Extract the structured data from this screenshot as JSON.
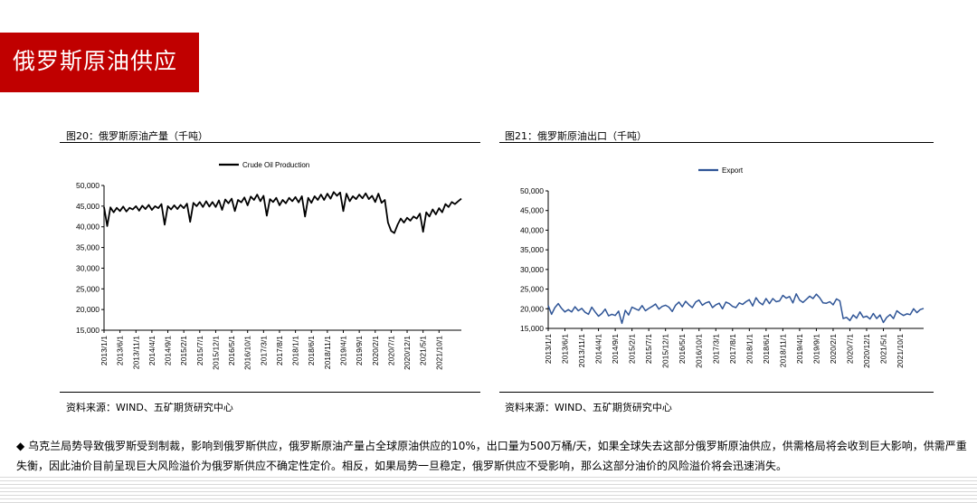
{
  "page_title": "俄罗斯原油供应",
  "footnote": {
    "bullet": "◆",
    "text": "乌克兰局势导致俄罗斯受到制裁，影响到俄罗斯供应，俄罗斯原油产量占全球原油供应的10%，出口量为500万桶/天，如果全球失去这部分俄罗斯原油供应，供需格局将会收到巨大影响，供需严重失衡，因此油价目前呈现巨大风险溢价为俄罗斯供应不确定性定价。相反，如果局势一旦稳定，俄罗斯供应不受影响，那么这部分油价的风险溢价将会迅速消失。"
  },
  "colors": {
    "banner": "#c00000",
    "production_line": "#000000",
    "export_line": "#2e5496"
  },
  "chart_data": [
    {
      "type": "line",
      "figure_title": "图20：俄罗斯原油产量（千吨）",
      "source": "资料来源：WIND、五矿期货研究中心",
      "legend": "top-center",
      "grid": false,
      "ylim": [
        15000,
        50000
      ],
      "yticks": [
        "15,000",
        "20,000",
        "25,000",
        "30,000",
        "35,000",
        "40,000",
        "45,000",
        "50,000"
      ],
      "xticks": [
        "2013/1/1",
        "2013/6/1",
        "2013/11/1",
        "2014/4/1",
        "2014/9/1",
        "2015/2/1",
        "2015/7/1",
        "2015/12/1",
        "2016/5/1",
        "2016/10/1",
        "2017/3/1",
        "2017/8/1",
        "2018/1/1",
        "2018/6/1",
        "2018/11/1",
        "2019/4/1",
        "2019/9/1",
        "2020/2/1",
        "2020/7/1",
        "2020/12/1",
        "2021/5/1",
        "2021/10/1"
      ],
      "series": [
        {
          "name": "Crude Oil Production",
          "start": "2013/1",
          "frequency": "monthly",
          "values": [
            44800,
            40200,
            44700,
            43500,
            44600,
            43800,
            44900,
            43700,
            44600,
            44200,
            45000,
            43900,
            45100,
            44300,
            45300,
            44100,
            45000,
            44500,
            45500,
            40500,
            45000,
            44200,
            45200,
            44300,
            45300,
            44500,
            45600,
            41200,
            45800,
            45000,
            46000,
            44800,
            46200,
            44900,
            46000,
            44800,
            46400,
            44100,
            46600,
            45700,
            46800,
            43800,
            46500,
            45900,
            47100,
            45200,
            47300,
            46500,
            47800,
            46200,
            47500,
            42700,
            46700,
            46000,
            47000,
            45200,
            46500,
            45700,
            47000,
            46200,
            47200,
            45900,
            47400,
            42500,
            47000,
            45800,
            47400,
            46500,
            47800,
            46500,
            48000,
            46800,
            48400,
            47500,
            48300,
            43800,
            48000,
            46200,
            47400,
            46700,
            47800,
            46900,
            48100,
            46700,
            47500,
            46000,
            48000,
            45800,
            46500,
            41000,
            39000,
            38500,
            40500,
            42000,
            41000,
            42200,
            41500,
            42500,
            42000,
            43200,
            38800,
            43500,
            42500,
            44200,
            43000,
            44500,
            43500,
            45500,
            44800,
            46000,
            45500,
            46200,
            46800
          ]
        }
      ]
    },
    {
      "type": "line",
      "figure_title": "图21：俄罗斯原油出口（千吨）",
      "source": "资料来源：WIND、五矿期货研究中心",
      "legend": "top-center",
      "grid": false,
      "ylim": [
        15000,
        50000
      ],
      "yticks": [
        "15,000",
        "20,000",
        "25,000",
        "30,000",
        "35,000",
        "40,000",
        "45,000",
        "50,000"
      ],
      "xticks": [
        "2013/1/1",
        "2013/6/1",
        "2013/11/1",
        "2014/4/1",
        "2014/9/1",
        "2015/2/1",
        "2015/7/1",
        "2015/12/1",
        "2016/5/1",
        "2016/10/1",
        "2017/3/1",
        "2017/8/1",
        "2018/1/1",
        "2018/6/1",
        "2018/11/1",
        "2019/4/1",
        "2019/9/1",
        "2020/2/1",
        "2020/7/1",
        "2020/12/1",
        "2021/5/1",
        "2021/10/1"
      ],
      "series": [
        {
          "name": "Export",
          "start": "2013/1",
          "frequency": "monthly",
          "values": [
            20800,
            18600,
            20300,
            21300,
            20100,
            19200,
            19800,
            19200,
            20500,
            19500,
            20100,
            19100,
            18600,
            20400,
            19200,
            18100,
            18800,
            19900,
            18200,
            18600,
            18300,
            19400,
            16300,
            19600,
            18400,
            20400,
            20000,
            19600,
            20800,
            19500,
            20100,
            20600,
            21200,
            19900,
            20600,
            20900,
            20400,
            19300,
            20900,
            21700,
            20500,
            21900,
            21000,
            20300,
            21700,
            22200,
            20900,
            21500,
            21800,
            20300,
            21000,
            21400,
            20000,
            21700,
            21300,
            20600,
            20300,
            21500,
            21100,
            21800,
            22300,
            20700,
            22800,
            21600,
            21000,
            22600,
            21300,
            22600,
            21800,
            22000,
            23400,
            22700,
            23100,
            21500,
            23800,
            22200,
            21600,
            22400,
            23200,
            22600,
            23700,
            22800,
            21500,
            21400,
            21800,
            21000,
            22500,
            22000,
            17500,
            17800,
            17000,
            18400,
            17600,
            19200,
            17800,
            18100,
            17400,
            18800,
            17500,
            18400,
            16500,
            17800,
            18500,
            17500,
            19500,
            18800,
            18300,
            18700,
            18500,
            20000,
            19000,
            19800,
            20100
          ]
        }
      ]
    }
  ]
}
